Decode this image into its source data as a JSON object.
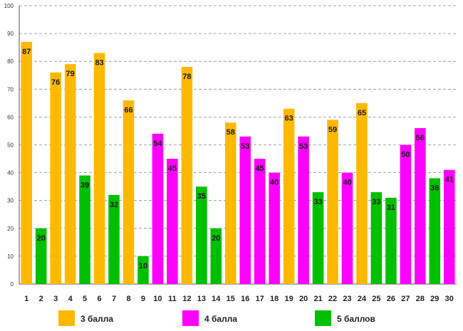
{
  "chart_data": {
    "type": "bar",
    "title": "",
    "xlabel": "",
    "ylabel": "",
    "ylim": [
      0,
      100
    ],
    "yticks": [
      0,
      10,
      20,
      30,
      40,
      50,
      60,
      70,
      80,
      90,
      100
    ],
    "grid": true,
    "categories": [
      "1",
      "2",
      "3",
      "4",
      "5",
      "6",
      "7",
      "8",
      "9",
      "10",
      "11",
      "12",
      "13",
      "14",
      "15",
      "16",
      "17",
      "18",
      "19",
      "20",
      "21",
      "22",
      "23",
      "24",
      "25",
      "26",
      "27",
      "28",
      "29",
      "30"
    ],
    "values": [
      87,
      20,
      76,
      79,
      39,
      83,
      32,
      66,
      10,
      54,
      45,
      78,
      35,
      20,
      58,
      53,
      45,
      40,
      63,
      53,
      33,
      59,
      40,
      65,
      33,
      31,
      50,
      56,
      38,
      41
    ],
    "groups": [
      3,
      5,
      3,
      3,
      5,
      3,
      5,
      3,
      5,
      4,
      4,
      3,
      5,
      5,
      3,
      4,
      4,
      4,
      3,
      4,
      5,
      3,
      4,
      3,
      5,
      5,
      4,
      4,
      5,
      4
    ],
    "legend": [
      {
        "key": 3,
        "label": "3 балла",
        "color": "#FFB800"
      },
      {
        "key": 4,
        "label": "4 балла",
        "color": "#FF00FF"
      },
      {
        "key": 5,
        "label": "5 баллов",
        "color": "#00C000"
      }
    ],
    "legend_position": "bottom"
  }
}
